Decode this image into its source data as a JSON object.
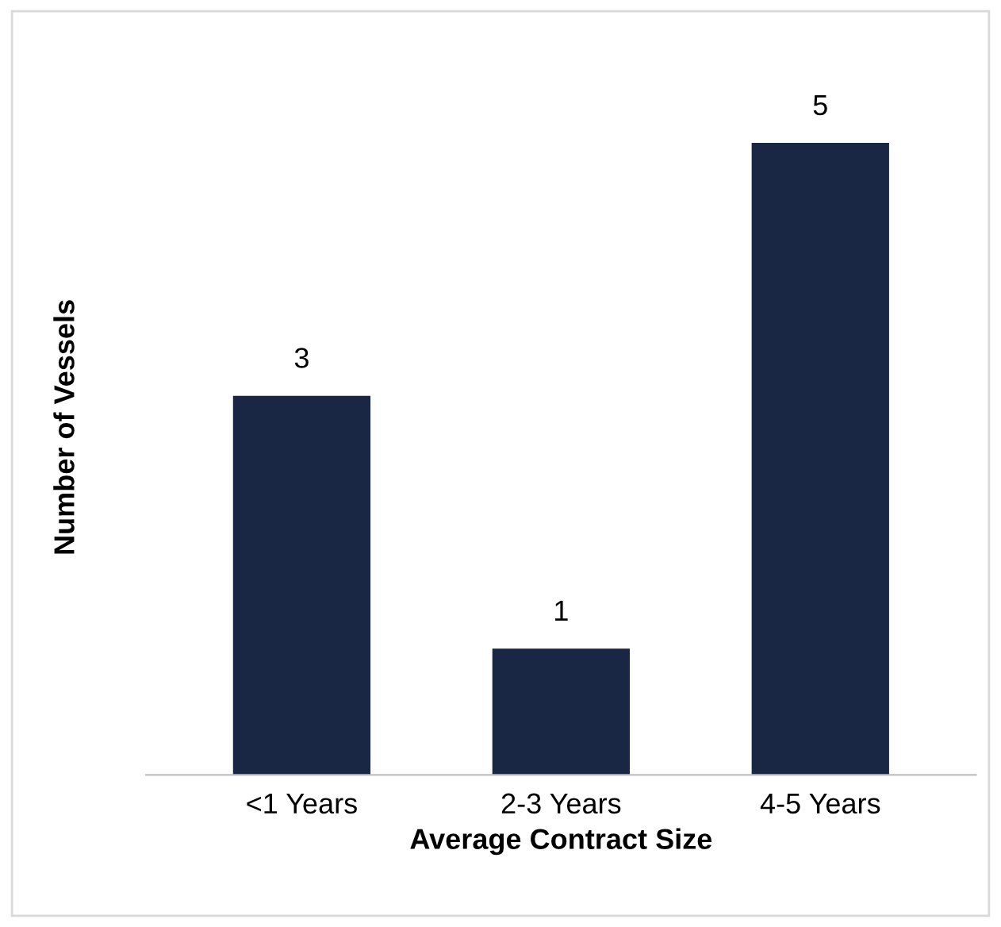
{
  "chart_data": {
    "type": "bar",
    "xlabel": "Average Contract Size",
    "ylabel": "Number of Vessels",
    "categories": [
      "<1 Years",
      "2-3 Years",
      "4-5 Years"
    ],
    "values": [
      3,
      1,
      5
    ],
    "color": "#1a2744",
    "data_labels": true,
    "grid": false,
    "legend": false
  }
}
